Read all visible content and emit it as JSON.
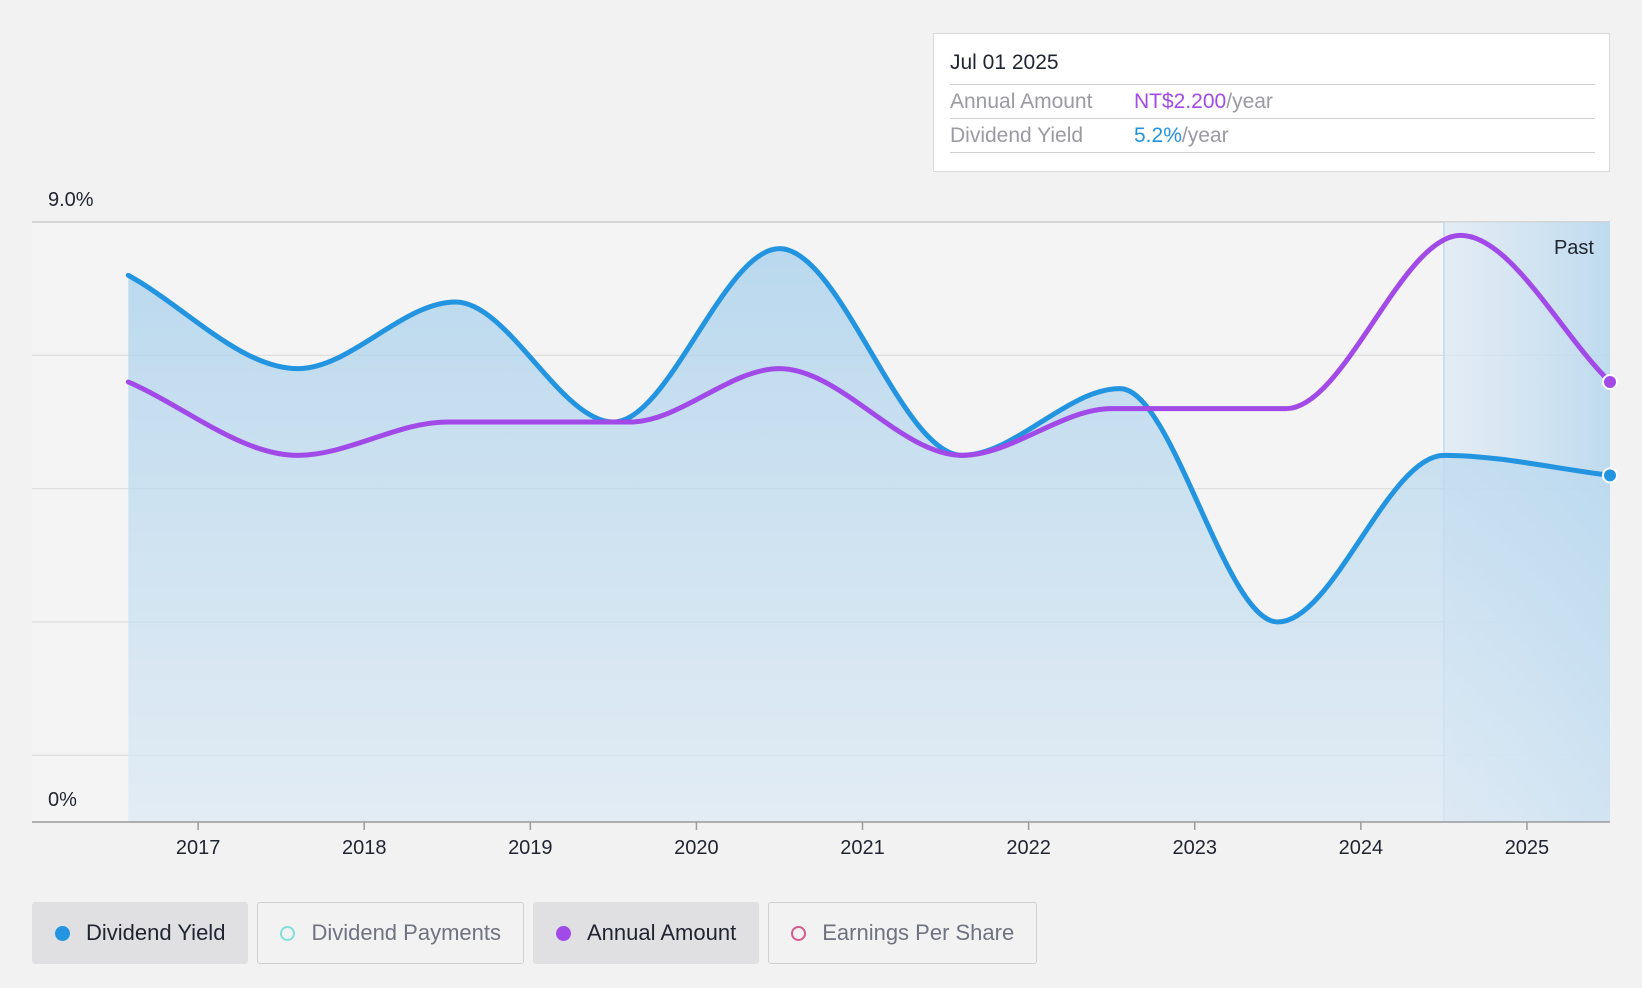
{
  "tooltip": {
    "date": "Jul 01 2025",
    "rows": [
      {
        "label": "Annual Amount",
        "value": "NT$2.200",
        "unit": "/year"
      },
      {
        "label": "Dividend Yield",
        "value": "5.2%",
        "unit": "/year"
      }
    ]
  },
  "legend": [
    {
      "label": "Dividend Yield",
      "color": "#2394e0",
      "active": true,
      "style": "filled"
    },
    {
      "label": "Dividend Payments",
      "color": "#7fe0d8",
      "active": false,
      "style": "hollow"
    },
    {
      "label": "Annual Amount",
      "color": "#a24ae8",
      "active": true,
      "style": "filled"
    },
    {
      "label": "Earnings Per Share",
      "color": "#d45a8e",
      "active": false,
      "style": "hollow"
    }
  ],
  "chart_data": {
    "type": "line",
    "y_top_label": "9.0%",
    "y_bottom_label": "0%",
    "past_label": "Past",
    "ylim": [
      0,
      9.0
    ],
    "xlim": [
      2016.0,
      2025.5
    ],
    "x_ticks": [
      2017,
      2018,
      2019,
      2020,
      2021,
      2022,
      2023,
      2024,
      2025
    ],
    "grid": true,
    "past_region": [
      2024.5,
      2025.5
    ],
    "series": [
      {
        "name": "Dividend Yield",
        "color": "#2394e0",
        "area": true,
        "x": [
          2016.58,
          2017.6,
          2018.55,
          2019.5,
          2020.5,
          2021.6,
          2022.55,
          2023.5,
          2024.5,
          2025.5
        ],
        "y": [
          8.2,
          6.8,
          7.8,
          6.0,
          8.6,
          5.5,
          6.5,
          3.0,
          5.5,
          5.2
        ]
      },
      {
        "name": "Annual Amount",
        "color": "#a24ae8",
        "area": false,
        "x": [
          2016.58,
          2017.6,
          2018.5,
          2019.6,
          2020.5,
          2021.6,
          2022.5,
          2023.55,
          2024.6,
          2025.5
        ],
        "y": [
          6.6,
          5.5,
          6.0,
          6.0,
          6.8,
          5.5,
          6.2,
          6.2,
          8.8,
          6.6
        ]
      }
    ]
  }
}
